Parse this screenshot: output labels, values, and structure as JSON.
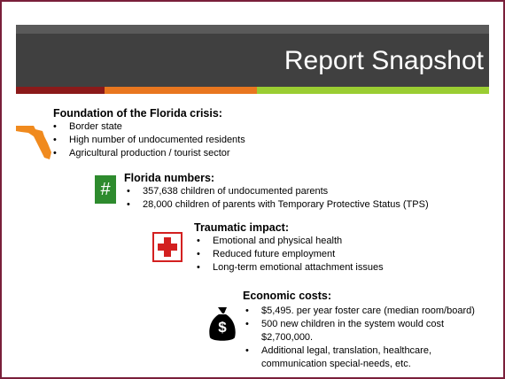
{
  "title": "Report Snapshot",
  "sections": [
    {
      "heading": "Foundation of the Florida crisis:",
      "bullets": [
        "Border state",
        "High number of undocumented residents",
        "Agricultural production / tourist sector"
      ]
    },
    {
      "icon": "#",
      "heading": "Florida numbers:",
      "bullets": [
        "357,638 children of undocumented parents",
        "28,000 children of parents with Temporary Protective Status (TPS)"
      ]
    },
    {
      "heading": "Traumatic impact:",
      "bullets": [
        "Emotional and physical health",
        "Reduced future employment",
        "Long-term emotional attachment issues"
      ]
    },
    {
      "icon": "$",
      "heading": "Economic costs:",
      "bullets": [
        "$5,495. per year foster care (median room/board)",
        "500 new children in the system would cost $2,700,000.",
        "Additional legal, translation, healthcare, communication special-needs, etc."
      ]
    }
  ]
}
